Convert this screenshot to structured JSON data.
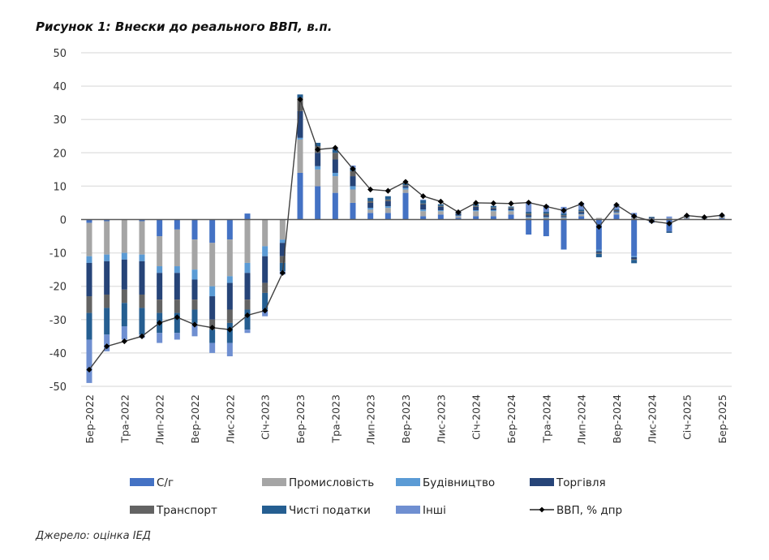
{
  "page": {
    "title": "Рисунок 1: Внески до реального ВВП, в.п.",
    "source": "Джерело: оцінка ІЕД"
  },
  "colors": {
    "agri": "#4472c4",
    "industry": "#a5a5a5",
    "construction": "#5b9bd5",
    "trade": "#264478",
    "transport": "#636363",
    "net_taxes": "#255e91",
    "other": "#6f8fd1",
    "gdp": "#000000",
    "grid": "#e3e3e3",
    "axis": "#595959"
  },
  "chart_data": {
    "type": "bar",
    "subtype": "stacked-bar-with-line",
    "title": "Рисунок 1: Внески до реального ВВП, в.п.",
    "xlabel": "",
    "ylabel": "",
    "ylim": [
      -50,
      50
    ],
    "yticks": [
      50,
      40,
      30,
      20,
      10,
      0,
      -10,
      -20,
      -30,
      -40,
      -50
    ],
    "grid": true,
    "legend_position": "bottom",
    "categories": [
      "Бер-2022",
      "Кві-2022",
      "Тра-2022",
      "Чер-2022",
      "Лип-2022",
      "Сер-2022",
      "Вер-2022",
      "Жов-2022",
      "Лис-2022",
      "Гру-2022",
      "Січ-2023",
      "Лют-2023",
      "Бер-2023",
      "Кві-2023",
      "Тра-2023",
      "Чер-2023",
      "Лип-2023",
      "Сер-2023",
      "Вер-2023",
      "Жов-2023",
      "Лис-2023",
      "Гру-2023",
      "Січ-2024",
      "Лют-2024",
      "Бер-2024",
      "Кві-2024",
      "Тра-2024",
      "Чер-2024",
      "Лип-2024",
      "Сер-2024",
      "Вер-2024",
      "Жов-2024",
      "Лис-2024",
      "Гру-2024",
      "Січ-2025",
      "Лют-2025",
      "Бер-2025"
    ],
    "tick_labels": [
      "Бер-2022",
      "Тра-2022",
      "Лип-2022",
      "Вер-2022",
      "Лис-2022",
      "Січ-2023",
      "Бер-2023",
      "Тра-2023",
      "Лип-2023",
      "Вер-2023",
      "Лис-2023",
      "Січ-2024",
      "Бер-2024",
      "Тра-2024",
      "Лип-2024",
      "Вер-2024",
      "Лис-2024",
      "Січ-2025",
      "Бер-2025"
    ],
    "series": [
      {
        "name": "С/г",
        "key": "agri",
        "values": [
          -1,
          -0.5,
          0,
          -0.5,
          -5,
          -3,
          -6,
          -7,
          -6,
          1.8,
          0,
          0,
          14,
          10,
          8,
          5,
          2,
          2,
          8,
          1,
          1.5,
          0.5,
          1,
          1,
          1.5,
          -4.5,
          -5,
          -9,
          1,
          -9,
          1.5,
          -11,
          -0.5,
          -3.5,
          0.3,
          0.2,
          0.4
        ]
      },
      {
        "name": "Промисловість",
        "key": "industry",
        "values": [
          -10,
          -10,
          -10,
          -10,
          -9,
          -11,
          -9,
          -13,
          -11,
          -13,
          -8,
          -6,
          10,
          5,
          5,
          4,
          1,
          1.5,
          1,
          1.5,
          1,
          0.5,
          1.5,
          1.5,
          1,
          0.5,
          0.5,
          0.5,
          0.5,
          0.5,
          0.5,
          0.5,
          0.2,
          0.2,
          0.4,
          0.3,
          0.4
        ]
      },
      {
        "name": "Будівництво",
        "key": "construction",
        "values": [
          -2,
          -2,
          -2,
          -2,
          -2,
          -2,
          -3,
          -3,
          -2,
          -3,
          -3,
          -1,
          0.5,
          1,
          1,
          1,
          0.5,
          0.5,
          0.5,
          0.5,
          0.3,
          0.2,
          0.3,
          0.3,
          0.3,
          0.3,
          0.3,
          0.2,
          0.2,
          -0.5,
          0.2,
          -0.3,
          0.1,
          0.1,
          0.1,
          0.1,
          0.1
        ]
      },
      {
        "name": "Торгівля",
        "key": "trade",
        "values": [
          -10,
          -10,
          -9,
          -10,
          -8,
          -8,
          -6,
          -7,
          -8,
          -8,
          -8,
          -4,
          8,
          4,
          4,
          3,
          1.5,
          1.5,
          0.5,
          1.5,
          1,
          0.5,
          1,
          0.5,
          0.5,
          0.5,
          0.5,
          0.3,
          0.5,
          -0.5,
          0.3,
          -0.5,
          0.2,
          -0.2,
          0.2,
          0.1,
          0.2
        ]
      },
      {
        "name": "Транспорт",
        "key": "transport",
        "values": [
          -5,
          -4,
          -4,
          -4,
          -4,
          -4,
          -3,
          -3,
          -4,
          -3,
          -3,
          -2,
          4,
          2,
          2,
          1.5,
          0.5,
          0.5,
          0.3,
          0.3,
          0.3,
          0.2,
          0.3,
          0.3,
          0.3,
          0.5,
          0.5,
          0.3,
          0.3,
          -0.3,
          0.3,
          -0.3,
          0.1,
          0.1,
          0.1,
          0.1,
          0.1
        ]
      },
      {
        "name": "Чисті податки",
        "key": "net_taxes",
        "values": [
          -8,
          -8,
          -7,
          -8,
          -6,
          -6,
          -4,
          -4,
          -6,
          -6,
          -5,
          -2.5,
          1,
          1,
          1,
          1,
          1,
          1,
          0.5,
          1,
          0.5,
          0.3,
          0.5,
          0.5,
          0.3,
          0.5,
          0.5,
          0.5,
          0.5,
          -1,
          0.3,
          -1,
          0.2,
          -0.3,
          0.2,
          0.1,
          0.2
        ]
      },
      {
        "name": "Інші",
        "key": "other",
        "values": [
          -13,
          -5,
          -4,
          -1,
          -3,
          -2,
          -4,
          -3,
          -4,
          -1,
          -2,
          -1,
          0,
          0,
          0.5,
          0.7,
          0,
          0,
          0,
          0.2,
          0,
          0.2,
          0,
          0,
          0,
          3,
          2,
          2,
          2,
          0,
          1.5,
          1.5,
          -0.5,
          0.5,
          0,
          0,
          0
        ]
      },
      {
        "name": "ВВП, % дпр",
        "key": "gdp",
        "type": "line",
        "values": [
          -45,
          -38,
          -36.5,
          -35,
          -31,
          -29.3,
          -31.5,
          -32.4,
          -33,
          -28.7,
          -27.3,
          -16,
          36,
          21,
          21.5,
          15.2,
          9,
          8.6,
          11.3,
          7,
          5.4,
          2.2,
          5,
          4.9,
          4.8,
          5.1,
          3.9,
          2.7,
          4.7,
          -2.2,
          4.4,
          1,
          -0.5,
          -1.2,
          1.2,
          0.7,
          1.3
        ]
      }
    ]
  },
  "legend": {
    "items": [
      {
        "label": "С/г",
        "key": "agri"
      },
      {
        "label": "Промисловість",
        "key": "industry"
      },
      {
        "label": "Будівництво",
        "key": "construction"
      },
      {
        "label": "Торгівля",
        "key": "trade"
      },
      {
        "label": "Транспорт",
        "key": "transport"
      },
      {
        "label": "Чисті податки",
        "key": "net_taxes"
      },
      {
        "label": "Інші",
        "key": "other"
      },
      {
        "label": "ВВП, % дпр",
        "key": "gdp"
      }
    ]
  }
}
